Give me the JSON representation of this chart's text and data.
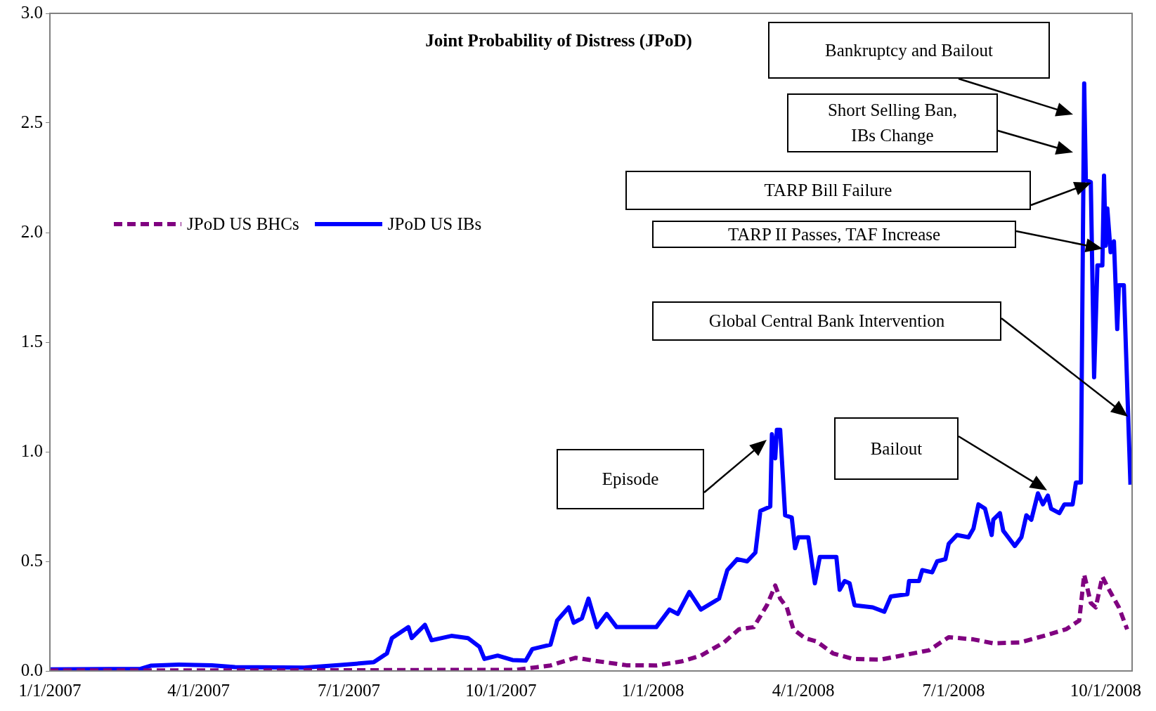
{
  "chart_data": {
    "type": "line",
    "title": "Joint Probability of Distress (JPoD)",
    "legend": "left",
    "xlim": [
      "2007-01-01",
      "2008-10-17"
    ],
    "xticks": [
      {
        "value": "2007-01-01",
        "label": "1/1/2007"
      },
      {
        "value": "2007-04-01",
        "label": "4/1/2007"
      },
      {
        "value": "2007-07-01",
        "label": "7/1/2007"
      },
      {
        "value": "2007-10-01",
        "label": "10/1/2007"
      },
      {
        "value": "2008-01-01",
        "label": "1/1/2008"
      },
      {
        "value": "2008-04-01",
        "label": "4/1/2008"
      },
      {
        "value": "2008-07-01",
        "label": "7/1/2008"
      },
      {
        "value": "2008-10-01",
        "label": "10/1/2008"
      }
    ],
    "ylim": [
      0,
      3
    ],
    "yticks": [
      {
        "value": 0,
        "label": "0.0"
      },
      0.5,
      {
        "value": 1,
        "label": "1.0"
      },
      1.5,
      {
        "value": 2,
        "label": "2.0"
      },
      2.5,
      {
        "value": 3,
        "label": "3.0"
      }
    ],
    "marker": "none",
    "series": [
      {
        "name": "JPoD US BHCs",
        "color": "#800080",
        "line_style": "dashed",
        "x": [
          "2007-01-01",
          "2007-07-01",
          "2007-09-01",
          "2007-10-10",
          "2007-10-31",
          "2007-11-15",
          "2007-11-28",
          "2007-12-16",
          "2008-01-03",
          "2008-01-18",
          "2008-01-30",
          "2008-02-13",
          "2008-02-22",
          "2008-03-02",
          "2008-03-10",
          "2008-03-15",
          "2008-03-18",
          "2008-03-22",
          "2008-03-26",
          "2008-04-02",
          "2008-04-09",
          "2008-04-19",
          "2008-05-01",
          "2008-05-18",
          "2008-06-02",
          "2008-06-16",
          "2008-06-28",
          "2008-07-13",
          "2008-07-25",
          "2008-08-10",
          "2008-08-26",
          "2008-09-07",
          "2008-09-15",
          "2008-09-18",
          "2008-09-22",
          "2008-09-25",
          "2008-09-29",
          "2008-10-02",
          "2008-10-09",
          "2008-10-14"
        ],
        "values": [
          0.002,
          0.003,
          0.005,
          0.005,
          0.025,
          0.06,
          0.045,
          0.026,
          0.025,
          0.043,
          0.07,
          0.13,
          0.19,
          0.2,
          0.3,
          0.39,
          0.33,
          0.29,
          0.19,
          0.15,
          0.135,
          0.08,
          0.055,
          0.052,
          0.074,
          0.094,
          0.154,
          0.144,
          0.126,
          0.13,
          0.163,
          0.19,
          0.23,
          0.44,
          0.31,
          0.29,
          0.43,
          0.385,
          0.29,
          0.19
        ]
      },
      {
        "name": "JPoD US IBs",
        "color": "#0000ff",
        "line_style": "solid",
        "x": [
          "2007-01-01",
          "2007-02-25",
          "2007-03-03",
          "2007-03-20",
          "2007-04-09",
          "2007-04-23",
          "2007-06-04",
          "2007-06-26",
          "2007-07-16",
          "2007-07-24",
          "2007-07-27",
          "2007-08-06",
          "2007-08-08",
          "2007-08-16",
          "2007-08-20",
          "2007-09-01",
          "2007-09-11",
          "2007-09-18",
          "2007-09-21",
          "2007-09-29",
          "2007-10-08",
          "2007-10-16",
          "2007-10-20",
          "2007-10-31",
          "2007-11-04",
          "2007-11-11",
          "2007-11-14",
          "2007-11-19",
          "2007-11-23",
          "2007-11-28",
          "2007-12-04",
          "2007-12-10",
          "2008-01-03",
          "2008-01-11",
          "2008-01-16",
          "2008-01-23",
          "2008-01-30",
          "2008-02-10",
          "2008-02-15",
          "2008-02-21",
          "2008-02-27",
          "2008-03-03",
          "2008-03-06",
          "2008-03-12",
          "2008-03-13",
          "2008-03-15",
          "2008-03-16",
          "2008-03-18",
          "2008-03-21",
          "2008-03-25",
          "2008-03-27",
          "2008-03-29",
          "2008-04-04",
          "2008-04-08",
          "2008-04-11",
          "2008-04-21",
          "2008-04-23",
          "2008-04-26",
          "2008-04-29",
          "2008-05-02",
          "2008-05-13",
          "2008-05-20",
          "2008-05-24",
          "2008-06-03",
          "2008-06-04",
          "2008-06-10",
          "2008-06-12",
          "2008-06-18",
          "2008-06-21",
          "2008-06-26",
          "2008-06-28",
          "2008-07-03",
          "2008-07-10",
          "2008-07-13",
          "2008-07-16",
          "2008-07-20",
          "2008-07-24",
          "2008-07-25",
          "2008-07-29",
          "2008-07-31",
          "2008-08-07",
          "2008-08-11",
          "2008-08-14",
          "2008-08-17",
          "2008-08-21",
          "2008-08-24",
          "2008-08-27",
          "2008-08-29",
          "2008-09-03",
          "2008-09-06",
          "2008-09-11",
          "2008-09-13",
          "2008-09-16",
          "2008-09-18",
          "2008-09-19",
          "2008-09-22",
          "2008-09-24",
          "2008-09-26",
          "2008-09-29",
          "2008-09-30",
          "2008-10-01",
          "2008-10-02",
          "2008-10-04",
          "2008-10-06",
          "2008-10-08",
          "2008-10-09",
          "2008-10-12",
          "2008-10-16"
        ],
        "values": [
          0.007,
          0.01,
          0.024,
          0.029,
          0.026,
          0.018,
          0.015,
          0.027,
          0.04,
          0.08,
          0.15,
          0.2,
          0.15,
          0.21,
          0.14,
          0.16,
          0.15,
          0.11,
          0.055,
          0.07,
          0.05,
          0.047,
          0.1,
          0.12,
          0.23,
          0.29,
          0.22,
          0.24,
          0.33,
          0.2,
          0.26,
          0.2,
          0.2,
          0.28,
          0.26,
          0.36,
          0.28,
          0.33,
          0.46,
          0.51,
          0.5,
          0.54,
          0.73,
          0.75,
          1.08,
          0.97,
          1.1,
          1.1,
          0.71,
          0.7,
          0.56,
          0.61,
          0.61,
          0.4,
          0.52,
          0.52,
          0.37,
          0.41,
          0.4,
          0.3,
          0.29,
          0.27,
          0.34,
          0.35,
          0.41,
          0.41,
          0.46,
          0.45,
          0.5,
          0.51,
          0.58,
          0.62,
          0.61,
          0.65,
          0.76,
          0.74,
          0.62,
          0.69,
          0.72,
          0.64,
          0.57,
          0.61,
          0.71,
          0.69,
          0.81,
          0.76,
          0.8,
          0.74,
          0.72,
          0.76,
          0.76,
          0.86,
          0.86,
          2.68,
          2.24,
          2.23,
          1.34,
          1.85,
          1.85,
          2.26,
          1.94,
          2.11,
          1.91,
          1.96,
          1.56,
          1.76,
          1.76,
          0.85
        ]
      }
    ],
    "annotations": [
      "Bankruptcy and Bailout",
      "Short Selling Ban, IBs Change",
      "TARP Bill Failure",
      "TARP II Passes, TAF Increase",
      "Global Central Bank Intervention",
      "Bailout",
      "Episode"
    ]
  }
}
